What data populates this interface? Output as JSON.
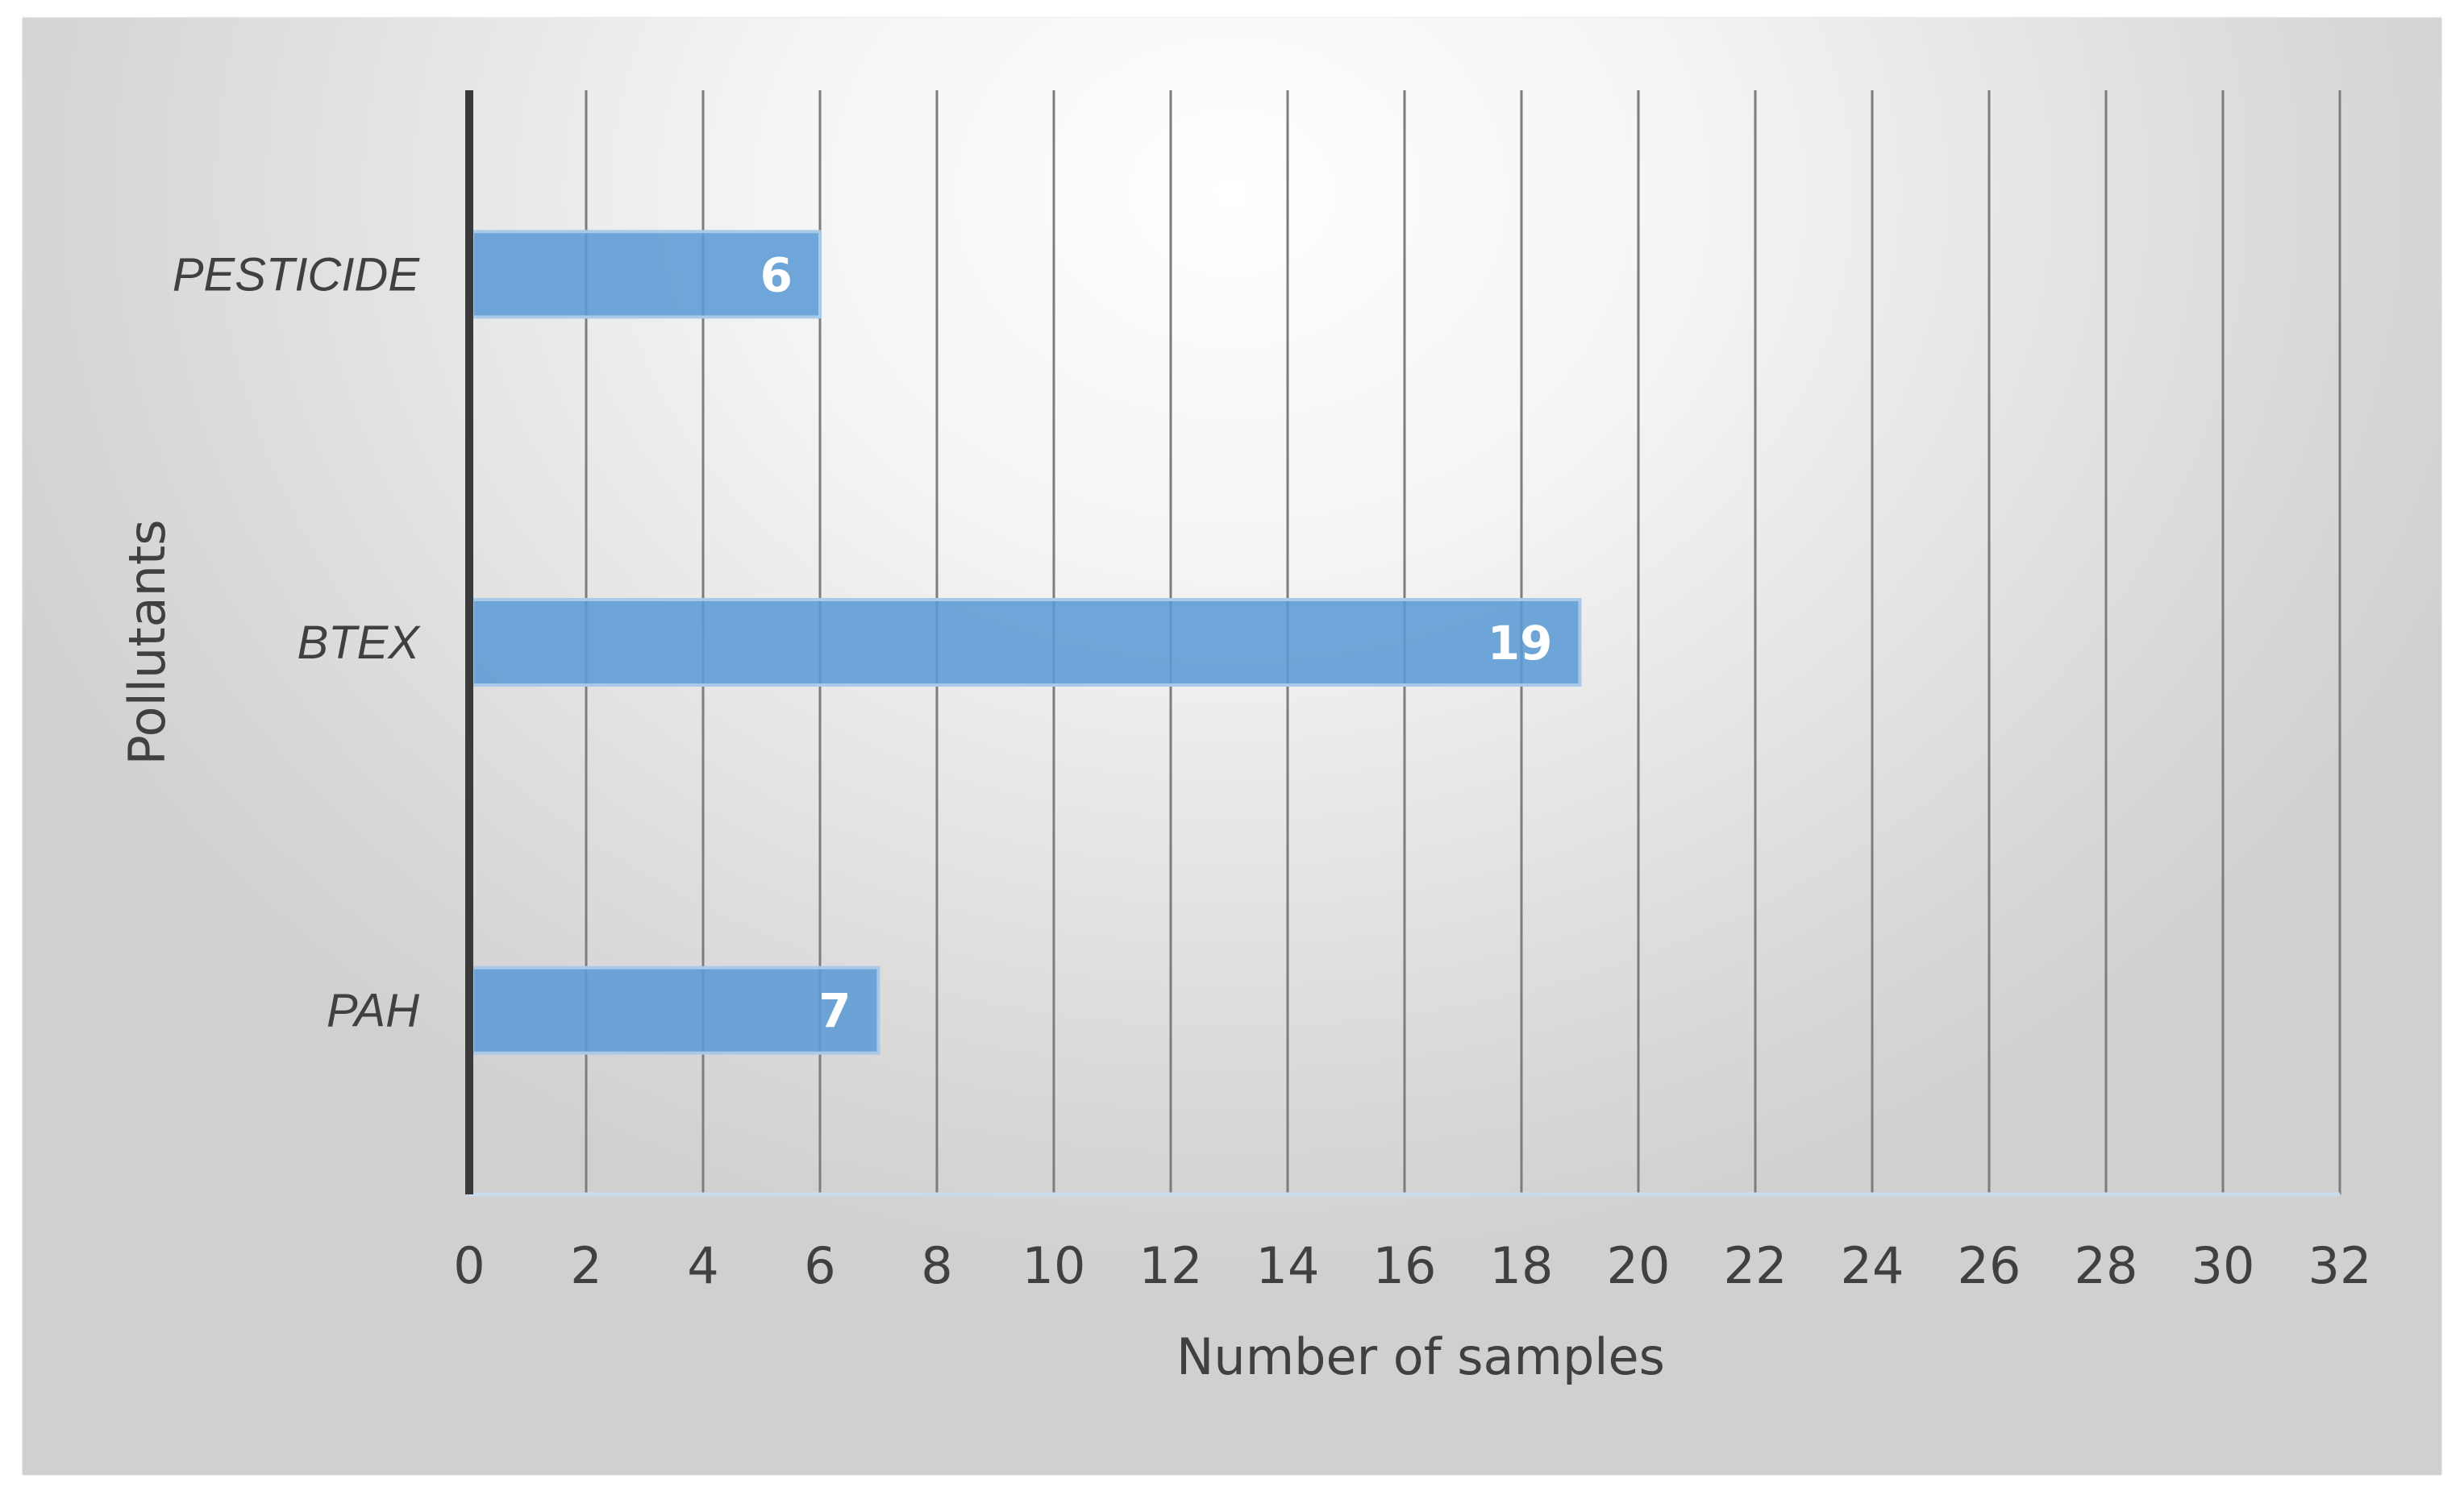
{
  "chart_data": {
    "type": "bar",
    "orientation": "horizontal",
    "categories": [
      "PESTICIDE",
      "BTEX",
      "PAH"
    ],
    "values": [
      6,
      19,
      7
    ],
    "data_labels": [
      "6",
      "19",
      "7"
    ],
    "xlabel": "Number of samples",
    "ylabel": "Pollutants",
    "xlim": [
      0,
      32
    ],
    "x_ticks": [
      "0",
      "2",
      "4",
      "6",
      "8",
      "10",
      "12",
      "14",
      "16",
      "18",
      "20",
      "22",
      "24",
      "26",
      "28",
      "30",
      "32"
    ],
    "grid": "vertical",
    "legend": "none",
    "bar_color": "#5b9bd5"
  }
}
